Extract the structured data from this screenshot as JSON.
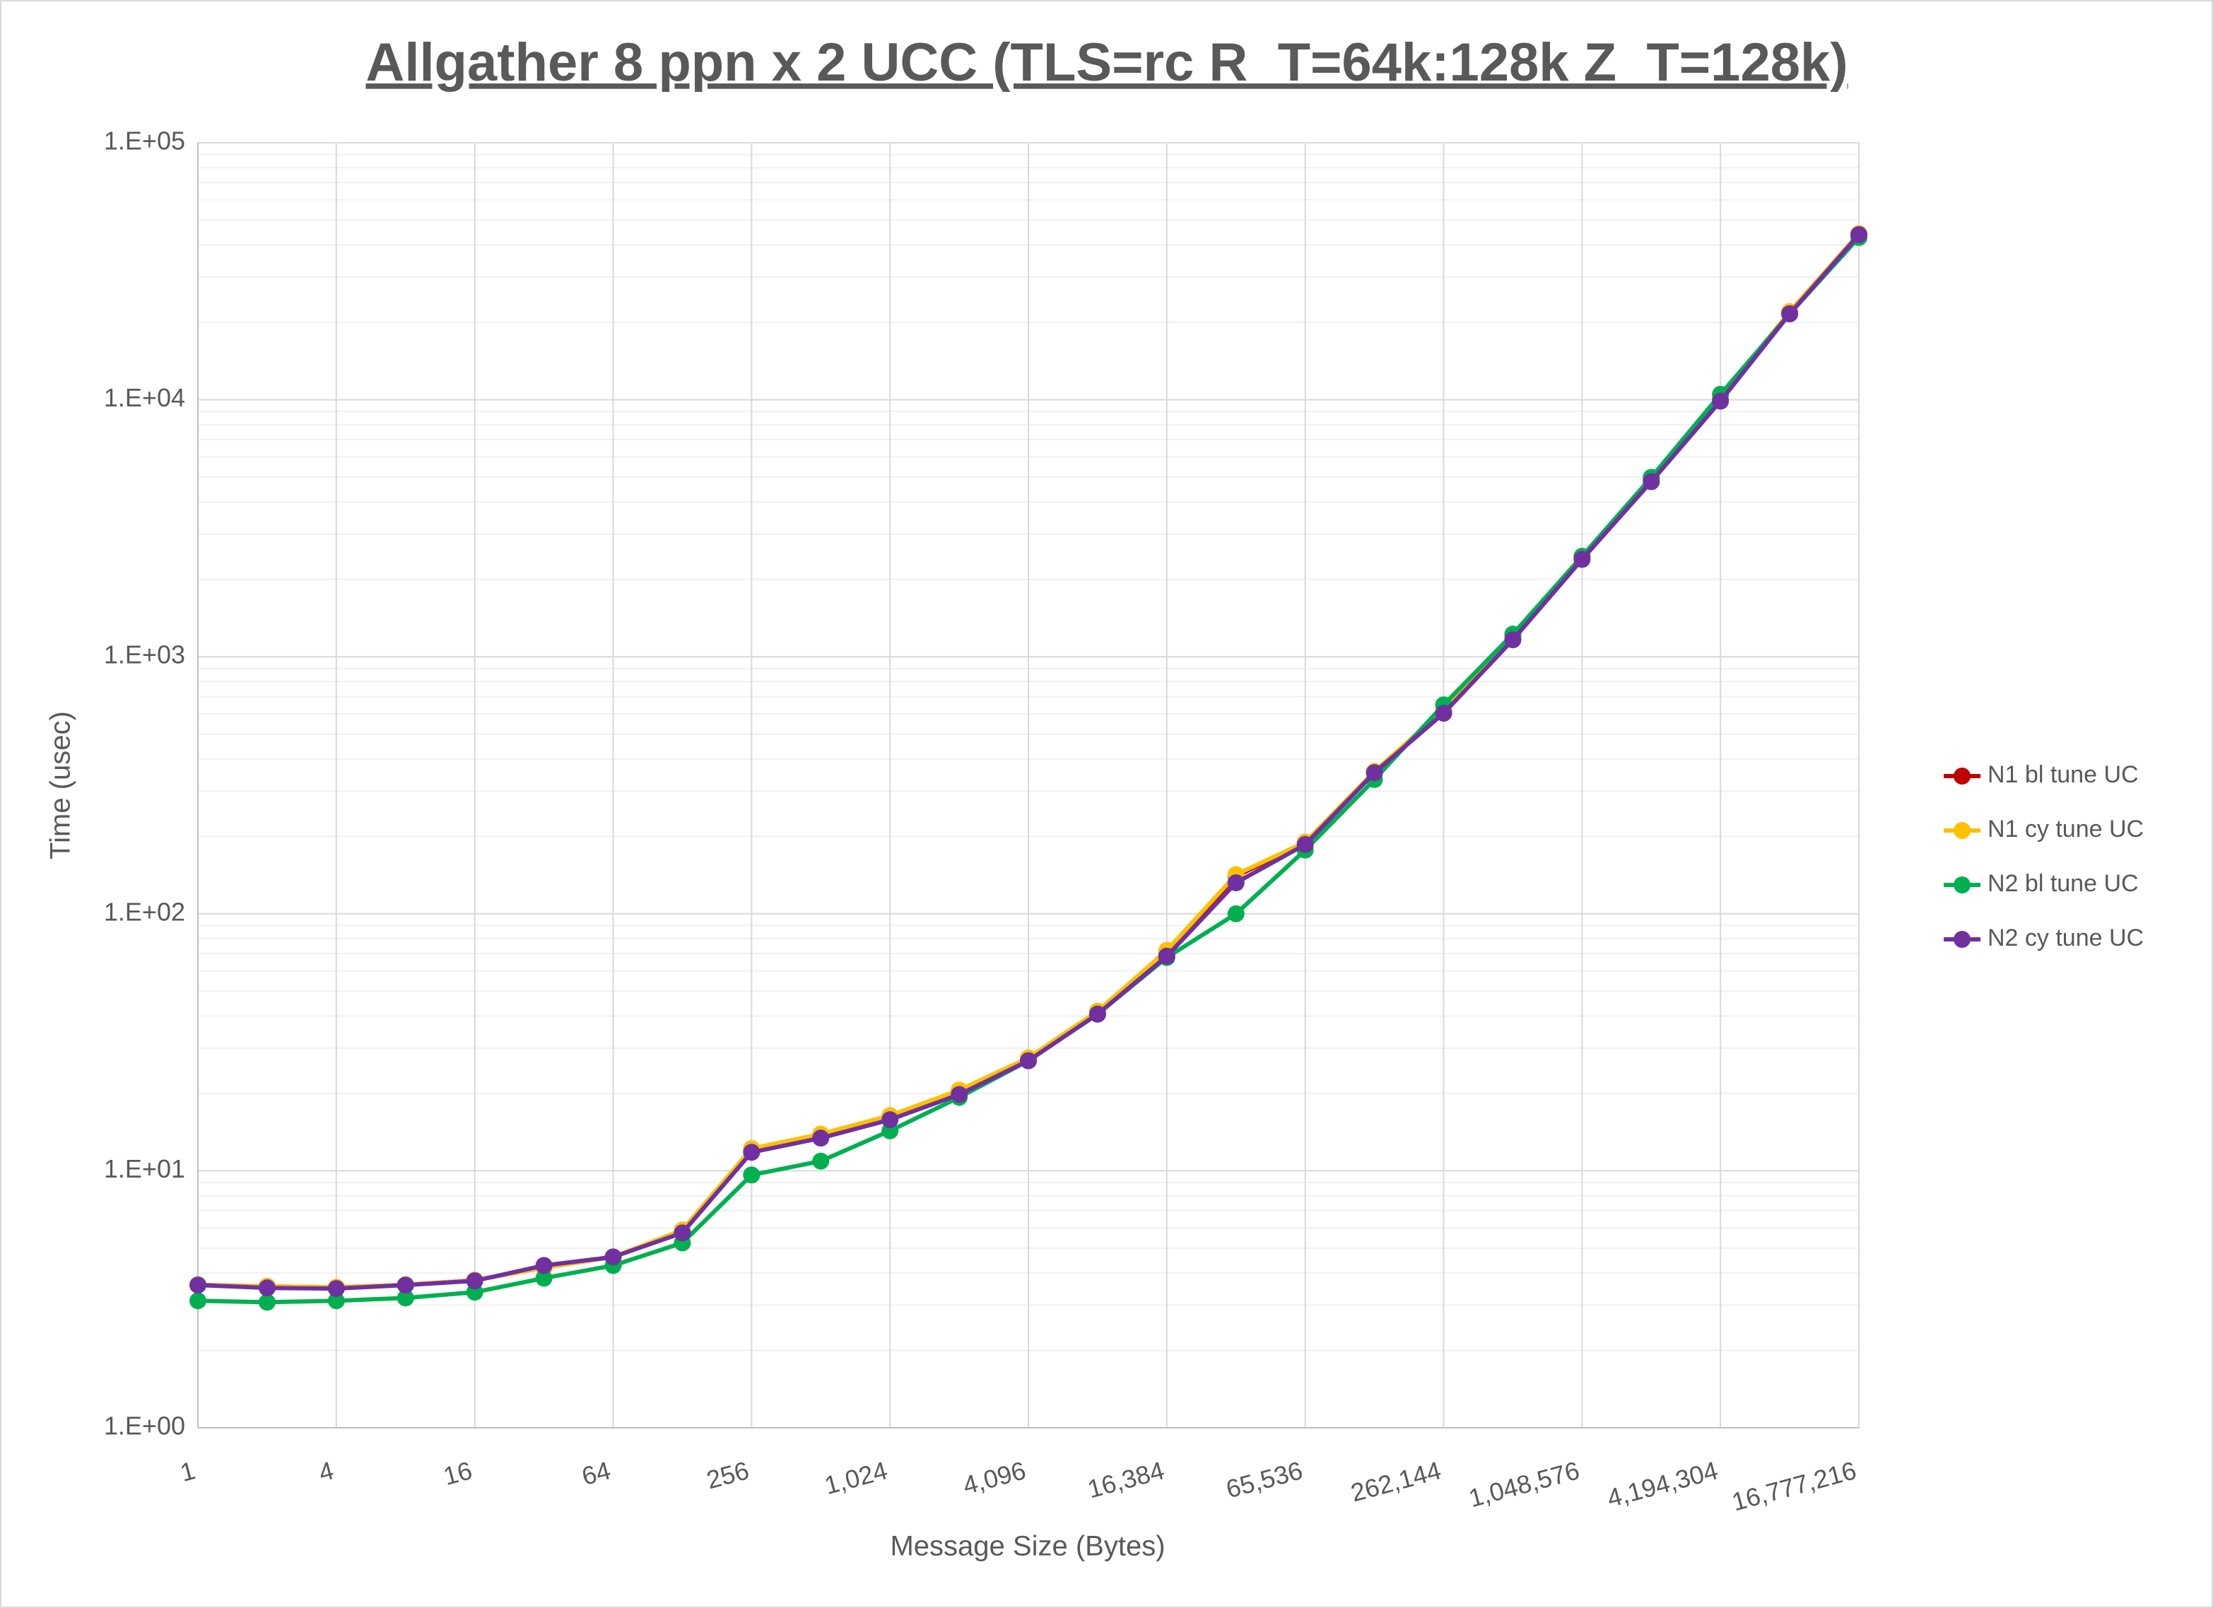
{
  "chart_data": {
    "type": "line",
    "title": "Allgather 8 ppn x 2 UCC (TLS=rc R_T=64k:128k Z_T=128k)",
    "x_label": "Message Size (Bytes)",
    "y_label": "Time (usec)",
    "x": [
      1,
      2,
      4,
      8,
      16,
      32,
      64,
      128,
      256,
      512,
      1024,
      2048,
      4096,
      8192,
      16384,
      32768,
      65536,
      131072,
      262144,
      524288,
      1048576,
      2097152,
      4194304,
      8388608,
      16777216
    ],
    "series": [
      {
        "name": "N1 bl tune UC",
        "color": "#c00000",
        "values": [
          3.6,
          3.55,
          3.52,
          3.6,
          3.75,
          4.2,
          4.62,
          5.8,
          12.0,
          13.8,
          16.2,
          20.4,
          27.3,
          41.5,
          71,
          140,
          189,
          356,
          615,
          1200,
          2440,
          4920,
          10100,
          22000,
          44200
        ]
      },
      {
        "name": "N1 cy tune UC",
        "color": "#ffc000",
        "values": [
          3.6,
          3.55,
          3.52,
          3.6,
          3.75,
          4.2,
          4.62,
          5.88,
          12.2,
          13.9,
          16.4,
          20.6,
          27.5,
          41.8,
          72,
          142,
          190,
          358,
          620,
          1210,
          2460,
          4940,
          10200,
          22000,
          44300
        ]
      },
      {
        "name": "N2 bl tune UC",
        "color": "#00b050",
        "values": [
          3.12,
          3.08,
          3.12,
          3.2,
          3.37,
          3.82,
          4.28,
          5.24,
          9.63,
          10.9,
          14.3,
          19.3,
          26.8,
          40.7,
          67.6,
          100,
          177,
          333,
          650,
          1225,
          2460,
          4990,
          10500,
          21600,
          42800
        ]
      },
      {
        "name": "N2 cy tune UC",
        "color": "#7030a0",
        "values": [
          3.59,
          3.5,
          3.48,
          3.59,
          3.73,
          4.28,
          4.62,
          5.73,
          11.8,
          13.4,
          15.8,
          19.8,
          26.8,
          40.7,
          68.4,
          132,
          186,
          354,
          603,
          1164,
          2393,
          4800,
          9880,
          21600,
          43900
        ]
      }
    ],
    "xlog": true,
    "ylog": true,
    "xlim": [
      1,
      16777216
    ],
    "xticks": [
      1,
      4,
      16,
      64,
      256,
      {
        "value": 1024,
        "label": "1,024"
      },
      {
        "value": 4096,
        "label": "4,096"
      },
      {
        "value": 16384,
        "label": "16,384"
      },
      {
        "value": 65536,
        "label": "65,536"
      },
      {
        "value": 262144,
        "label": "262,144"
      },
      {
        "value": 1048576,
        "label": "1,048,576"
      },
      {
        "value": 4194304,
        "label": "4,194,304"
      },
      {
        "value": 16777216,
        "label": "16,777,216"
      }
    ],
    "ylim": [
      1,
      100000
    ],
    "yticks": [
      {
        "value": 1,
        "label": "1.E+00"
      },
      {
        "value": 10,
        "label": "1.E+01"
      },
      {
        "value": 100,
        "label": "1.E+02"
      },
      {
        "value": 1000,
        "label": "1.E+03"
      },
      {
        "value": 10000,
        "label": "1.E+04"
      },
      {
        "value": 100000,
        "label": "1.E+05"
      }
    ],
    "grid": true,
    "minor_grid": true,
    "legend": "right"
  }
}
